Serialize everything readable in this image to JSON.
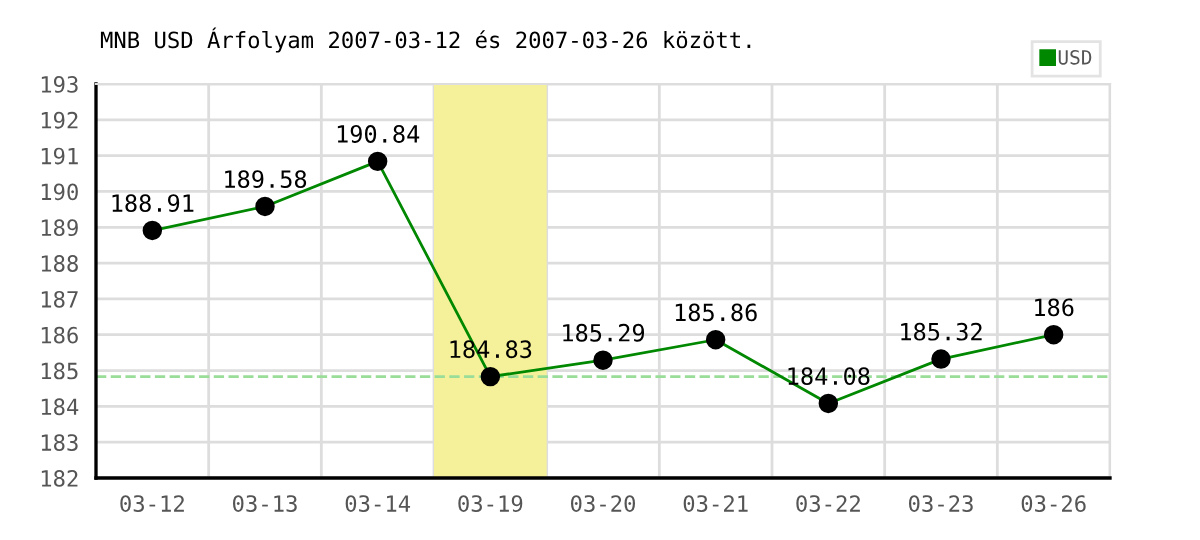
{
  "chart_data": {
    "type": "line",
    "title": "MNB USD Árfolyam 2007-03-12 és 2007-03-26 között.",
    "categories": [
      "03-12",
      "03-13",
      "03-14",
      "03-19",
      "03-20",
      "03-21",
      "03-22",
      "03-23",
      "03-26"
    ],
    "series": [
      {
        "name": "USD",
        "color": "#008800",
        "values": [
          188.91,
          189.58,
          190.84,
          184.83,
          185.29,
          185.86,
          184.08,
          185.32,
          186
        ]
      }
    ],
    "ylim": [
      182,
      193
    ],
    "yticks": [
      182,
      183,
      184,
      185,
      186,
      187,
      188,
      189,
      190,
      191,
      192,
      193
    ],
    "ref_lines": [
      {
        "axis": "y",
        "value": 184.83,
        "color": "#99dd99",
        "line_style": "dashed"
      }
    ],
    "bands": [
      {
        "axis": "x",
        "from": "03-19",
        "to": "03-19",
        "color": "#f5f09a"
      }
    ],
    "data_labels": true,
    "grid": true,
    "legend": "top right",
    "marker": "circle",
    "line_style": "solid"
  }
}
